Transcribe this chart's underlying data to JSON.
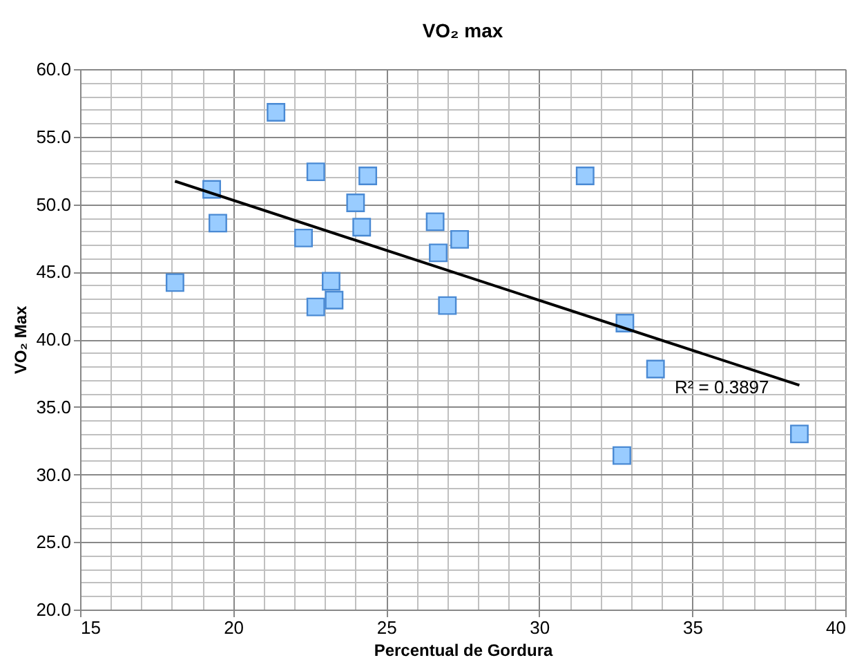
{
  "chart_data": {
    "type": "scatter",
    "title": "VO₂ max",
    "xlabel": "Percentual de Gordura",
    "ylabel": "VO₂ Max",
    "xlim": [
      15,
      40
    ],
    "xticks": [
      15,
      20,
      25,
      30,
      35,
      40
    ],
    "ylim": [
      20,
      60
    ],
    "yticks": [
      {
        "value": 20,
        "label": "20.0"
      },
      {
        "value": 25,
        "label": "25.0"
      },
      {
        "value": 30,
        "label": "30.0"
      },
      {
        "value": 35,
        "label": "35.0"
      },
      {
        "value": 40,
        "label": "40.0"
      },
      {
        "value": 45,
        "label": "45.0"
      },
      {
        "value": 50,
        "label": "50.0"
      },
      {
        "value": 55,
        "label": "55.0"
      },
      {
        "value": 60,
        "label": "60.0"
      }
    ],
    "grid": true,
    "series": [
      {
        "color": "#99ccff",
        "marker": "square",
        "x": [
          21.4,
          22.7,
          24.4,
          19.3,
          24.0,
          19.5,
          24.2,
          22.3,
          26.6,
          27.4,
          26.7,
          18.1,
          23.2,
          23.3,
          22.7,
          27.0,
          31.5,
          32.8,
          33.8,
          38.5,
          32.7
        ],
        "values": [
          56.8,
          52.4,
          52.1,
          51.1,
          50.1,
          48.6,
          48.3,
          47.5,
          48.7,
          47.4,
          46.4,
          44.2,
          44.3,
          42.9,
          42.4,
          42.5,
          52.1,
          41.2,
          37.8,
          33.0,
          31.4
        ]
      },
      {
        "type": "line",
        "marker": "none",
        "color": "#000000",
        "x": [
          18.1,
          38.5
        ],
        "values": [
          51.7,
          36.6
        ]
      }
    ],
    "annotations": [
      "R² = 0.3897"
    ]
  }
}
